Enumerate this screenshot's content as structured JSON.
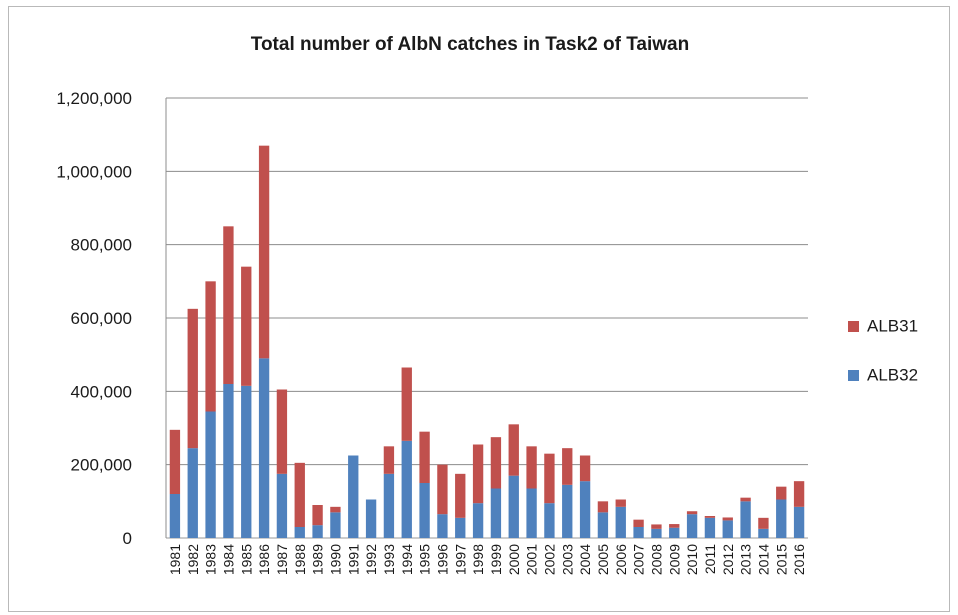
{
  "chart_data": {
    "type": "bar",
    "stacked": true,
    "title": "Total number of AlbN catches in Task2 of Taiwan",
    "xlabel": "",
    "ylabel": "",
    "ylim": [
      0,
      1200000
    ],
    "yticks": [
      0,
      200000,
      400000,
      600000,
      800000,
      1000000,
      1200000
    ],
    "ytick_labels": [
      "0",
      "200,000",
      "400,000",
      "600,000",
      "800,000",
      "1,000,000",
      "1,200,000"
    ],
    "grid": true,
    "legend_position": "right",
    "categories": [
      "1981",
      "1982",
      "1983",
      "1984",
      "1985",
      "1986",
      "1987",
      "1988",
      "1989",
      "1990",
      "1991",
      "1992",
      "1993",
      "1994",
      "1995",
      "1996",
      "1997",
      "1998",
      "1999",
      "2000",
      "2001",
      "2002",
      "2003",
      "2004",
      "2005",
      "2006",
      "2007",
      "2008",
      "2009",
      "2010",
      "2011",
      "2012",
      "2013",
      "2014",
      "2015",
      "2016"
    ],
    "series": [
      {
        "name": "ALB32",
        "color": "#4f81bd",
        "values": [
          120000,
          245000,
          345000,
          420000,
          415000,
          490000,
          175000,
          30000,
          35000,
          70000,
          225000,
          105000,
          175000,
          265000,
          150000,
          65000,
          55000,
          95000,
          135000,
          170000,
          135000,
          95000,
          145000,
          155000,
          70000,
          85000,
          30000,
          25000,
          28000,
          65000,
          55000,
          48000,
          100000,
          25000,
          105000,
          85000
        ]
      },
      {
        "name": "ALB31",
        "color": "#c0504d",
        "values": [
          175000,
          380000,
          355000,
          430000,
          325000,
          580000,
          230000,
          175000,
          55000,
          15000,
          0,
          0,
          75000,
          200000,
          140000,
          135000,
          120000,
          160000,
          140000,
          140000,
          115000,
          135000,
          100000,
          70000,
          30000,
          20000,
          20000,
          12000,
          10000,
          8000,
          5000,
          8000,
          10000,
          30000,
          35000,
          70000
        ]
      }
    ]
  },
  "legend": [
    {
      "label": "ALB31",
      "color": "#c0504d"
    },
    {
      "label": "ALB32",
      "color": "#4f81bd"
    }
  ]
}
